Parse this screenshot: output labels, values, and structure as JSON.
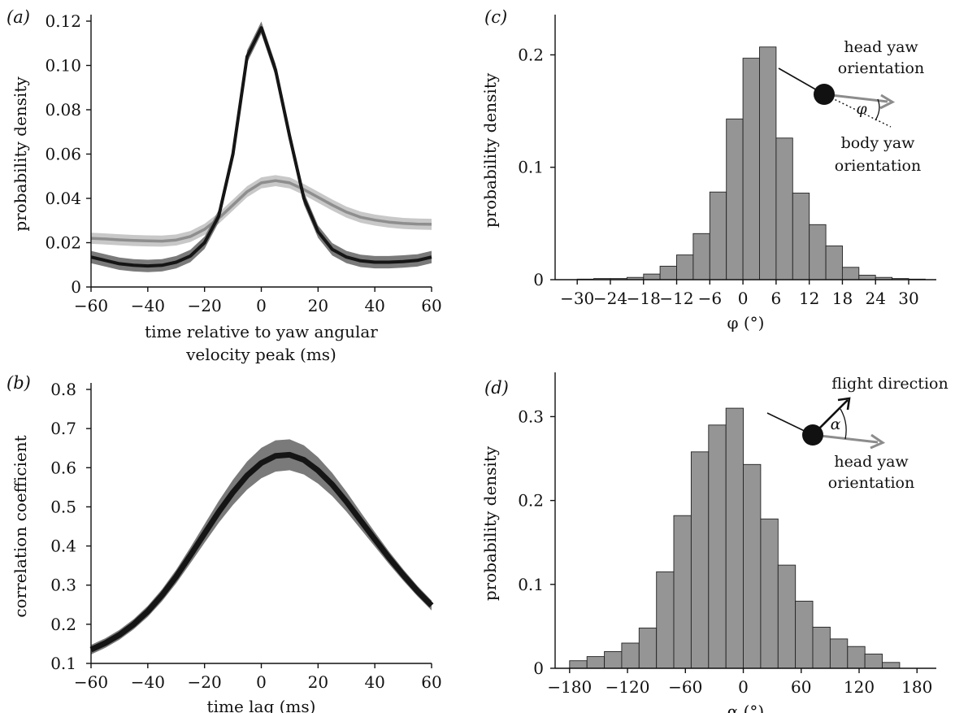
{
  "panels": {
    "a": "(a)",
    "b": "(b)",
    "c": "(c)",
    "d": "(d)"
  },
  "colors": {
    "dark_line": "#151515",
    "dark_band": "#7a7a7a",
    "light_line": "#8e8e8e",
    "light_band": "#c8c8c8",
    "bar_fill": "#959595",
    "bar_edge": "#222222"
  },
  "chart_data": [
    {
      "id": "a",
      "type": "line",
      "title": "",
      "xlabel": "time relative to yaw angular velocity peak (ms)",
      "xlabel_lines": [
        "time relative to yaw angular",
        "velocity peak (ms)"
      ],
      "ylabel": "probability density",
      "xlim": [
        -60,
        60
      ],
      "ylim": [
        0,
        0.12
      ],
      "xticks": [
        -60,
        -40,
        -20,
        0,
        20,
        40,
        60
      ],
      "yticks": [
        0,
        0.02,
        0.04,
        0.06,
        0.08,
        0.1,
        0.12
      ],
      "ytick_labels": [
        "0",
        "0.02",
        "0.04",
        "0.06",
        "0.08",
        "0.10",
        "0.12"
      ],
      "x": [
        -60,
        -55,
        -50,
        -45,
        -40,
        -35,
        -30,
        -25,
        -20,
        -15,
        -10,
        -5,
        0,
        5,
        10,
        15,
        20,
        25,
        30,
        35,
        40,
        45,
        50,
        55,
        60
      ],
      "series": [
        {
          "style": "light",
          "values": [
            0.022,
            0.0217,
            0.0213,
            0.021,
            0.0208,
            0.0207,
            0.0212,
            0.0228,
            0.026,
            0.031,
            0.037,
            0.043,
            0.047,
            0.048,
            0.047,
            0.044,
            0.0405,
            0.037,
            0.0338,
            0.0315,
            0.0302,
            0.0293,
            0.0287,
            0.0284,
            0.0283
          ],
          "band": 0.0025
        },
        {
          "style": "dark",
          "values": [
            0.0135,
            0.012,
            0.0105,
            0.0098,
            0.0095,
            0.0098,
            0.0112,
            0.014,
            0.02,
            0.032,
            0.06,
            0.104,
            0.117,
            0.098,
            0.068,
            0.04,
            0.025,
            0.017,
            0.0135,
            0.0118,
            0.0112,
            0.0112,
            0.0115,
            0.012,
            0.0135
          ],
          "band": 0.0028
        }
      ]
    },
    {
      "id": "b",
      "type": "line",
      "title": "",
      "xlabel": "time lag (ms)",
      "ylabel": "correlation coefficient",
      "xlim": [
        -60,
        60
      ],
      "ylim": [
        0.1,
        0.8
      ],
      "xticks": [
        -60,
        -40,
        -20,
        0,
        20,
        40,
        60
      ],
      "yticks": [
        0.1,
        0.2,
        0.3,
        0.4,
        0.5,
        0.6,
        0.7,
        0.8
      ],
      "ytick_labels": [
        "0.1",
        "0.2",
        "0.3",
        "0.4",
        "0.5",
        "0.6",
        "0.7",
        "0.8"
      ],
      "x": [
        -60,
        -55,
        -50,
        -45,
        -40,
        -35,
        -30,
        -25,
        -20,
        -15,
        -10,
        -5,
        0,
        5,
        10,
        15,
        20,
        25,
        30,
        35,
        40,
        45,
        50,
        55,
        60
      ],
      "series": [
        {
          "style": "dark",
          "values": [
            0.135,
            0.152,
            0.173,
            0.2,
            0.233,
            0.274,
            0.322,
            0.376,
            0.432,
            0.487,
            0.537,
            0.58,
            0.612,
            0.63,
            0.633,
            0.62,
            0.593,
            0.557,
            0.513,
            0.465,
            0.417,
            0.37,
            0.326,
            0.285,
            0.248
          ],
          "band_base": 0.012,
          "band_peak": 0.04
        }
      ]
    },
    {
      "id": "c",
      "type": "bar",
      "title": "",
      "xlabel": "φ (°)",
      "ylabel": "probability density",
      "xlim": [
        -34,
        35
      ],
      "ylim": [
        0,
        0.23
      ],
      "xticks": [
        -30,
        -24,
        -18,
        -12,
        -6,
        0,
        6,
        12,
        18,
        24,
        30
      ],
      "xtick_labels": [
        "−30",
        "−24",
        "−18",
        "−12",
        "−6",
        "0",
        "6",
        "12",
        "18",
        "24",
        "30"
      ],
      "yticks": [
        0,
        0.1,
        0.2
      ],
      "ytick_labels": [
        "0",
        "0.1",
        "0.2"
      ],
      "bin_start": -30,
      "bin_width": 3,
      "values": [
        0.0005,
        0.001,
        0.001,
        0.002,
        0.005,
        0.012,
        0.022,
        0.041,
        0.078,
        0.143,
        0.197,
        0.207,
        0.126,
        0.077,
        0.049,
        0.03,
        0.011,
        0.004,
        0.002,
        0.001,
        0.0005
      ],
      "annotations": {
        "top": [
          "head yaw",
          "orientation"
        ],
        "bottom": [
          "body yaw",
          "orientation"
        ],
        "angle": "φ"
      }
    },
    {
      "id": "d",
      "type": "bar",
      "title": "",
      "xlabel": "α (°)",
      "ylabel": "probability density",
      "xlim": [
        -195,
        200
      ],
      "ylim": [
        0,
        0.345
      ],
      "xticks": [
        -180,
        -120,
        -60,
        0,
        60,
        120,
        180
      ],
      "xtick_labels": [
        "−180",
        "−120",
        "−60",
        "0",
        "60",
        "120",
        "180"
      ],
      "yticks": [
        0,
        0.1,
        0.2,
        0.3
      ],
      "ytick_labels": [
        "0",
        "0.1",
        "0.2",
        "0.3"
      ],
      "bin_start": -180,
      "bin_width": 18,
      "values": [
        0.009,
        0.014,
        0.02,
        0.03,
        0.048,
        0.115,
        0.182,
        0.258,
        0.29,
        0.31,
        0.243,
        0.178,
        0.123,
        0.08,
        0.049,
        0.035,
        0.026,
        0.017,
        0.007
      ],
      "annotations": {
        "top": [
          "flight direction"
        ],
        "bottom": [
          "head yaw",
          "orientation"
        ],
        "angle": "α"
      }
    }
  ]
}
